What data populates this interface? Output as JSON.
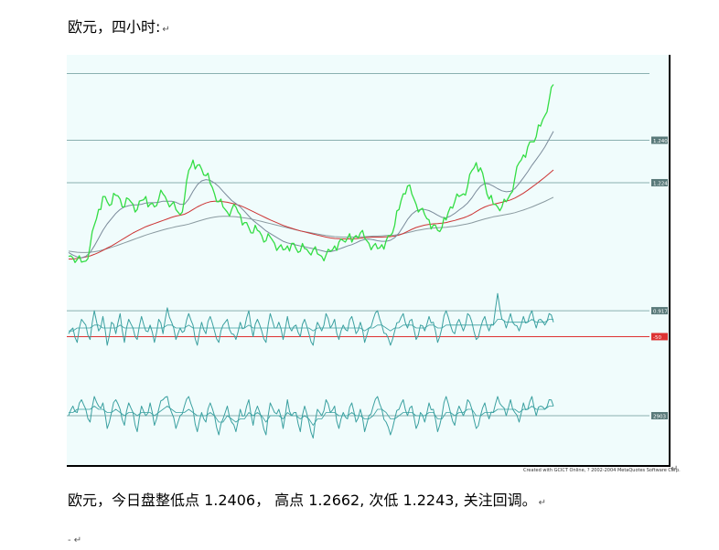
{
  "heading": {
    "text": "欧元，四小时:",
    "mark": "↵"
  },
  "summary": {
    "text": "欧元，今日盘整低点 1.2406， 高点 1.2662, 次低 1.2243, 关注回调。",
    "mark": "↵"
  },
  "trailing": {
    "text": "-  ↵"
  },
  "credit": {
    "text": "Created with GCICT Online, ? 2002-2004 MetaQuotes Software Corp.",
    "mark": "↵"
  },
  "colors": {
    "price": "#33dd44",
    "ma_fast": "#7a8a9a",
    "ma_mid": "#cc3333",
    "ma_slow": "#8a9aa0",
    "level": "#8ab0b0",
    "osc": "#3aa0a0",
    "zero_red": "#dd3333",
    "frame_bg": "#f0fcfc"
  },
  "chart_data": [
    {
      "type": "line",
      "panel": "price",
      "levels": [
        {
          "value": 1.2662,
          "label": ""
        },
        {
          "value": 1.2406,
          "label": "1.2406"
        },
        {
          "value": 1.2243,
          "label": "1.2243"
        }
      ],
      "ylim": [
        1.185,
        1.272
      ],
      "price": [
        1.196,
        1.1955,
        1.1948,
        1.1938,
        1.1942,
        1.2,
        1.208,
        1.214,
        1.219,
        1.217,
        1.216,
        1.2195,
        1.218,
        1.215,
        1.218,
        1.216,
        1.214,
        1.2175,
        1.219,
        1.216,
        1.215,
        1.218,
        1.22,
        1.217,
        1.216,
        1.214,
        1.212,
        1.218,
        1.229,
        1.233,
        1.231,
        1.2295,
        1.227,
        1.224,
        1.22,
        1.217,
        1.215,
        1.213,
        1.214,
        1.215,
        1.212,
        1.209,
        1.207,
        1.205,
        1.206,
        1.204,
        1.202,
        1.2035,
        1.201,
        1.1995,
        1.1985,
        1.2,
        1.201,
        1.199,
        1.198,
        1.199,
        1.1975,
        1.1985,
        1.197,
        1.196,
        1.1965,
        1.198,
        1.2,
        1.2015,
        1.202,
        1.203,
        1.2015,
        1.204,
        1.205,
        1.203,
        1.201,
        1.2,
        1.199,
        1.2005,
        1.202,
        1.204,
        1.208,
        1.214,
        1.22,
        1.223,
        1.22,
        1.216,
        1.214,
        1.212,
        1.21,
        1.208,
        1.206,
        1.207,
        1.21,
        1.215,
        1.217,
        1.219,
        1.22,
        1.223,
        1.229,
        1.232,
        1.23,
        1.224,
        1.218,
        1.216,
        1.215,
        1.215,
        1.217,
        1.22,
        1.226,
        1.232,
        1.235,
        1.238,
        1.24,
        1.242,
        1.246,
        1.25,
        1.256,
        1.262
      ],
      "ma_fast": [
        1.1975,
        1.1965,
        1.1958,
        1.1955,
        1.196,
        1.1975,
        1.2,
        1.203,
        1.206,
        1.2085,
        1.2105,
        1.2125,
        1.214,
        1.215,
        1.2155,
        1.2158,
        1.2158,
        1.216,
        1.2165,
        1.2166,
        1.2166,
        1.2168,
        1.2172,
        1.2172,
        1.2172,
        1.2168,
        1.216,
        1.216,
        1.218,
        1.221,
        1.2235,
        1.225,
        1.2255,
        1.2252,
        1.2242,
        1.2228,
        1.221,
        1.2192,
        1.2175,
        1.2163,
        1.215,
        1.2133,
        1.2115,
        1.2098,
        1.2085,
        1.2072,
        1.2058,
        1.2048,
        1.2038,
        1.2028,
        1.2018,
        1.2012,
        1.2008,
        1.2004,
        1.2,
        1.1997,
        1.1993,
        1.199,
        1.1986,
        1.1982,
        1.1978,
        1.1978,
        1.1982,
        1.1988,
        1.1994,
        1.2,
        1.2005,
        1.2012,
        1.202,
        1.2025,
        1.2026,
        1.2024,
        1.202,
        1.2018,
        1.2018,
        1.2022,
        1.2032,
        1.205,
        1.2075,
        1.2102,
        1.2122,
        1.2135,
        1.214,
        1.214,
        1.2136,
        1.2128,
        1.2118,
        1.211,
        1.2108,
        1.2115,
        1.2125,
        1.2138,
        1.215,
        1.2165,
        1.2185,
        1.221,
        1.223,
        1.224,
        1.2238,
        1.223,
        1.222,
        1.2212,
        1.2208,
        1.221,
        1.222,
        1.224,
        1.2262,
        1.2285,
        1.231,
        1.2332,
        1.2355,
        1.238,
        1.241,
        1.244
      ],
      "ma_mid": [
        1.195,
        1.195,
        1.1952,
        1.1955,
        1.1958,
        1.1962,
        1.1968,
        1.1975,
        1.1983,
        1.1992,
        1.2,
        1.201,
        1.202,
        1.203,
        1.204,
        1.205,
        1.2058,
        1.2066,
        1.2074,
        1.208,
        1.2086,
        1.2092,
        1.2098,
        1.2104,
        1.211,
        1.2115,
        1.2118,
        1.2122,
        1.213,
        1.214,
        1.215,
        1.2158,
        1.2165,
        1.217,
        1.2172,
        1.2172,
        1.217,
        1.2168,
        1.2164,
        1.216,
        1.2155,
        1.2148,
        1.214,
        1.2132,
        1.2124,
        1.2116,
        1.2108,
        1.21,
        1.2093,
        1.2086,
        1.2079,
        1.2073,
        1.2068,
        1.2063,
        1.2058,
        1.2054,
        1.205,
        1.2046,
        1.2042,
        1.2038,
        1.2034,
        1.2031,
        1.2029,
        1.2028,
        1.2027,
        1.2027,
        1.2027,
        1.2028,
        1.203,
        1.2032,
        1.2033,
        1.2034,
        1.2034,
        1.2034,
        1.2035,
        1.2036,
        1.2038,
        1.2042,
        1.2048,
        1.2056,
        1.2064,
        1.2071,
        1.2076,
        1.208,
        1.2083,
        1.2085,
        1.2086,
        1.2088,
        1.209,
        1.2094,
        1.2098,
        1.2103,
        1.2108,
        1.2114,
        1.2122,
        1.2132,
        1.2142,
        1.215,
        1.2156,
        1.216,
        1.2164,
        1.2168,
        1.2172,
        1.2177,
        1.2184,
        1.2193,
        1.2203,
        1.2214,
        1.2226,
        1.2238,
        1.2251,
        1.2264,
        1.2278,
        1.2292
      ],
      "ma_slow": [
        1.198,
        1.1978,
        1.1976,
        1.1975,
        1.1975,
        1.1976,
        1.1978,
        1.1981,
        1.1985,
        1.199,
        1.1995,
        1.2,
        1.2006,
        1.2012,
        1.2018,
        1.2024,
        1.203,
        1.2036,
        1.2042,
        1.2047,
        1.2052,
        1.2057,
        1.2062,
        1.2066,
        1.207,
        1.2074,
        1.2077,
        1.208,
        1.2084,
        1.2089,
        1.2094,
        1.2099,
        1.2104,
        1.2108,
        1.2111,
        1.2113,
        1.2114,
        1.2114,
        1.2113,
        1.2112,
        1.211,
        1.2108,
        1.2105,
        1.2102,
        1.2098,
        1.2094,
        1.209,
        1.2086,
        1.2082,
        1.2078,
        1.2074,
        1.207,
        1.2066,
        1.2062,
        1.2058,
        1.2055,
        1.2052,
        1.2049,
        1.2046,
        1.2043,
        1.204,
        1.2038,
        1.2036,
        1.2035,
        1.2034,
        1.2034,
        1.2034,
        1.2034,
        1.2035,
        1.2036,
        1.2037,
        1.2038,
        1.2038,
        1.2039,
        1.204,
        1.2041,
        1.2042,
        1.2044,
        1.2047,
        1.2051,
        1.2055,
        1.2059,
        1.2062,
        1.2065,
        1.2067,
        1.2069,
        1.207,
        1.2071,
        1.2072,
        1.2074,
        1.2076,
        1.2079,
        1.2082,
        1.2085,
        1.2089,
        1.2094,
        1.2099,
        1.2104,
        1.2108,
        1.2112,
        1.2115,
        1.2118,
        1.2121,
        1.2124,
        1.2128,
        1.2133,
        1.2138,
        1.2144,
        1.215,
        1.2157,
        1.2164,
        1.2171,
        1.2179,
        1.2187
      ]
    },
    {
      "type": "line",
      "panel": "oscillator-1",
      "levels": [
        {
          "value": 0.9,
          "label": "0.917",
          "color": "level"
        },
        {
          "value": 0.0,
          "label": "-50",
          "color": "zero_red"
        }
      ],
      "ylim": [
        -1.0,
        1.6
      ],
      "values": [
        0.1,
        0.3,
        -0.2,
        0.6,
        0.4,
        -0.1,
        0.9,
        0.2,
        0.7,
        -0.3,
        0.5,
        0.1,
        0.8,
        -0.2,
        0.6,
        0.3,
        -0.1,
        0.7,
        0.2,
        0.4,
        -0.2,
        0.6,
        0.1,
        1.0,
        0.5,
        -0.1,
        0.3,
        0.2,
        0.8,
        0.4,
        -0.3,
        0.5,
        0.1,
        0.7,
        0.2,
        -0.2,
        0.4,
        0.6,
        0.1,
        -0.1,
        0.5,
        0.3,
        0.9,
        0.0,
        0.6,
        0.2,
        -0.2,
        0.8,
        0.3,
        0.5,
        -0.1,
        0.7,
        0.2,
        0.4,
        0.0,
        0.6,
        0.1,
        -0.3,
        0.5,
        0.2,
        0.8,
        0.3,
        0.6,
        -0.1,
        0.4,
        0.2,
        0.7,
        0.1,
        0.5,
        -0.2,
        0.3,
        0.6,
        0.9,
        0.4,
        0.1,
        -0.3,
        0.2,
        0.5,
        0.8,
        0.3,
        0.6,
        -0.1,
        0.4,
        0.2,
        0.7,
        0.5,
        -0.2,
        0.3,
        0.9,
        0.4,
        0.1,
        0.6,
        0.2,
        0.8,
        0.5,
        -0.1,
        0.3,
        0.7,
        0.2,
        0.4,
        1.5,
        0.6,
        0.3,
        0.8,
        0.4,
        0.2,
        0.7,
        0.5,
        0.9,
        0.3,
        0.6,
        0.4,
        0.8,
        0.5
      ],
      "ma": [
        0.2,
        0.2,
        0.3,
        0.3,
        0.3,
        0.3,
        0.4,
        0.4,
        0.3,
        0.3,
        0.3,
        0.3,
        0.4,
        0.3,
        0.3,
        0.3,
        0.3,
        0.3,
        0.3,
        0.3,
        0.3,
        0.3,
        0.3,
        0.4,
        0.4,
        0.3,
        0.3,
        0.3,
        0.4,
        0.3,
        0.3,
        0.3,
        0.3,
        0.3,
        0.3,
        0.3,
        0.3,
        0.3,
        0.3,
        0.3,
        0.3,
        0.3,
        0.4,
        0.3,
        0.3,
        0.3,
        0.3,
        0.3,
        0.3,
        0.3,
        0.3,
        0.3,
        0.3,
        0.3,
        0.3,
        0.3,
        0.3,
        0.2,
        0.3,
        0.3,
        0.3,
        0.3,
        0.3,
        0.3,
        0.3,
        0.3,
        0.3,
        0.3,
        0.3,
        0.2,
        0.3,
        0.3,
        0.4,
        0.4,
        0.3,
        0.2,
        0.3,
        0.3,
        0.4,
        0.4,
        0.4,
        0.3,
        0.3,
        0.3,
        0.4,
        0.4,
        0.3,
        0.3,
        0.4,
        0.4,
        0.4,
        0.4,
        0.4,
        0.4,
        0.4,
        0.4,
        0.4,
        0.4,
        0.4,
        0.4,
        0.6,
        0.6,
        0.5,
        0.5,
        0.5,
        0.5,
        0.5,
        0.5,
        0.6,
        0.5,
        0.5,
        0.5,
        0.6,
        0.6
      ]
    },
    {
      "type": "line",
      "panel": "oscillator-2",
      "levels": [
        {
          "value": 0.0,
          "label": "2903",
          "color": "level"
        }
      ],
      "ylim": [
        -1.0,
        1.0
      ],
      "values": [
        0.0,
        0.3,
        0.1,
        0.5,
        0.2,
        -0.2,
        0.6,
        0.3,
        0.4,
        -0.4,
        0.1,
        0.5,
        0.2,
        -0.3,
        0.4,
        0.1,
        -0.5,
        0.3,
        0.0,
        0.4,
        -0.3,
        0.2,
        0.5,
        0.6,
        0.1,
        -0.4,
        0.0,
        0.3,
        0.6,
        0.2,
        -0.5,
        0.1,
        -0.2,
        0.4,
        0.0,
        -0.6,
        -0.1,
        0.3,
        -0.2,
        -0.5,
        0.2,
        0.0,
        0.5,
        -0.3,
        0.3,
        -0.1,
        -0.6,
        0.4,
        0.1,
        0.2,
        -0.4,
        0.5,
        0.0,
        0.1,
        -0.5,
        0.3,
        -0.2,
        -0.7,
        0.2,
        0.0,
        0.5,
        0.1,
        0.3,
        -0.4,
        0.1,
        -0.1,
        0.4,
        -0.2,
        0.2,
        -0.5,
        0.0,
        0.3,
        0.6,
        0.2,
        -0.2,
        -0.6,
        -0.1,
        0.2,
        0.5,
        0.0,
        0.3,
        -0.4,
        0.1,
        -0.2,
        0.4,
        0.2,
        -0.5,
        0.0,
        0.6,
        0.1,
        -0.3,
        0.3,
        0.0,
        0.5,
        0.2,
        -0.4,
        0.0,
        0.4,
        -0.1,
        0.1,
        0.6,
        0.3,
        0.0,
        0.5,
        0.1,
        -0.2,
        0.4,
        0.2,
        0.6,
        0.0,
        0.3,
        0.2,
        0.5,
        0.3
      ],
      "ma": [
        0.1,
        0.1,
        0.2,
        0.2,
        0.2,
        0.2,
        0.3,
        0.2,
        0.2,
        0.1,
        0.1,
        0.2,
        0.1,
        0.0,
        0.1,
        0.1,
        0.0,
        0.1,
        0.1,
        0.1,
        0.0,
        0.1,
        0.2,
        0.3,
        0.2,
        0.1,
        0.1,
        0.1,
        0.2,
        0.1,
        0.0,
        0.0,
        0.0,
        0.1,
        0.0,
        -0.2,
        -0.2,
        0.0,
        -0.1,
        -0.2,
        -0.1,
        -0.1,
        0.1,
        0.0,
        0.1,
        0.0,
        -0.2,
        0.0,
        0.0,
        0.0,
        -0.1,
        0.1,
        0.0,
        0.0,
        -0.1,
        0.0,
        -0.1,
        -0.3,
        -0.1,
        -0.1,
        0.1,
        0.1,
        0.1,
        0.0,
        0.0,
        0.0,
        0.1,
        0.0,
        0.0,
        -0.1,
        -0.1,
        0.0,
        0.2,
        0.2,
        0.1,
        -0.1,
        -0.1,
        0.0,
        0.1,
        0.1,
        0.1,
        0.0,
        0.0,
        0.0,
        0.1,
        0.1,
        -0.1,
        -0.1,
        0.1,
        0.1,
        0.0,
        0.1,
        0.1,
        0.2,
        0.2,
        0.0,
        0.0,
        0.1,
        0.1,
        0.1,
        0.2,
        0.2,
        0.2,
        0.2,
        0.2,
        0.1,
        0.2,
        0.2,
        0.3,
        0.2,
        0.2,
        0.2,
        0.3,
        0.3
      ]
    }
  ]
}
